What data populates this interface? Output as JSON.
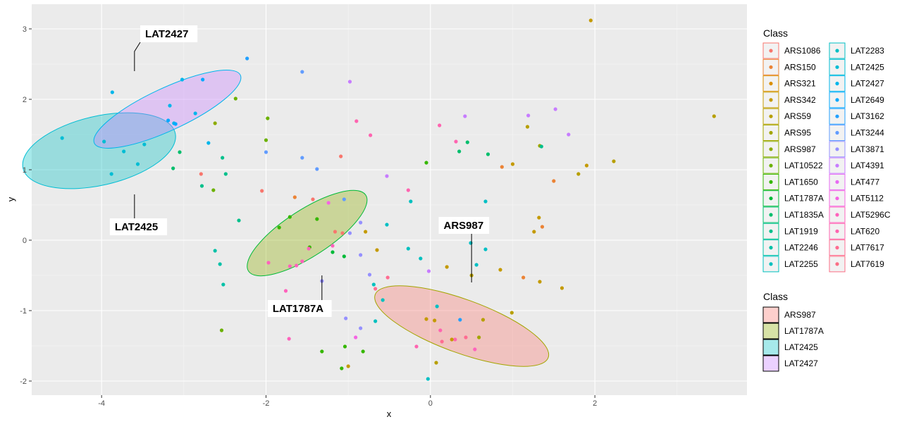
{
  "chart_data": {
    "type": "scatter",
    "xlabel": "x",
    "ylabel": "y",
    "xlim": [
      -4.85,
      3.85
    ],
    "ylim": [
      -2.2,
      3.35
    ],
    "xticks": [
      -4,
      -2,
      0,
      2
    ],
    "yticks": [
      -2,
      -1,
      0,
      1,
      2,
      3
    ],
    "grid": true,
    "legend_title": "Class",
    "classes": [
      {
        "name": "ARS1086",
        "color": "#F8766D"
      },
      {
        "name": "ARS150",
        "color": "#EB8335"
      },
      {
        "name": "ARS321",
        "color": "#DA8F00"
      },
      {
        "name": "ARS342",
        "color": "#C49A00"
      },
      {
        "name": "ARS59",
        "color": "#B79F00"
      },
      {
        "name": "ARS95",
        "color": "#A3A500"
      },
      {
        "name": "ARS987",
        "color": "#8CAB00"
      },
      {
        "name": "LAT10522",
        "color": "#6BB100"
      },
      {
        "name": "LAT1650",
        "color": "#35B700"
      },
      {
        "name": "LAT1787A",
        "color": "#00BA38"
      },
      {
        "name": "LAT1835A",
        "color": "#00BE6C"
      },
      {
        "name": "LAT1919",
        "color": "#00C08B"
      },
      {
        "name": "LAT2246",
        "color": "#00C1A7"
      },
      {
        "name": "LAT2255",
        "color": "#00C0BF"
      },
      {
        "name": "LAT2283",
        "color": "#00BFC4"
      },
      {
        "name": "LAT2425",
        "color": "#00BDD4"
      },
      {
        "name": "LAT2427",
        "color": "#00B6EB"
      },
      {
        "name": "LAT2649",
        "color": "#00A9FF"
      },
      {
        "name": "LAT3162",
        "color": "#21A0FF"
      },
      {
        "name": "LAT3244",
        "color": "#619CFF"
      },
      {
        "name": "LAT3871",
        "color": "#9590FF"
      },
      {
        "name": "LAT4391",
        "color": "#C77CFF"
      },
      {
        "name": "LAT477",
        "color": "#E76BF3"
      },
      {
        "name": "LAT5112",
        "color": "#F564E3"
      },
      {
        "name": "LAT5296C",
        "color": "#FF62BC"
      },
      {
        "name": "LAT620",
        "color": "#FF64B0"
      },
      {
        "name": "LAT7617",
        "color": "#FF6C91"
      },
      {
        "name": "LAT7619",
        "color": "#FB6F85"
      }
    ],
    "ellipse_legend_title": "Class",
    "ellipses": [
      {
        "name": "ARS987",
        "cx": 0.38,
        "cy": -1.22,
        "rx": 1.12,
        "ry": 0.38,
        "angle": 20,
        "fill": "#F8766D",
        "stroke": "#A3A500"
      },
      {
        "name": "LAT1787A",
        "cx": -1.5,
        "cy": 0.1,
        "rx": 0.85,
        "ry": 0.33,
        "angle": -33,
        "fill": "#8CAB00",
        "stroke": "#00BA38"
      },
      {
        "name": "LAT2425",
        "cx": -4.03,
        "cy": 1.27,
        "rx": 0.95,
        "ry": 0.49,
        "angle": -13,
        "fill": "#00BFC4",
        "stroke": "#00BDD4"
      },
      {
        "name": "LAT2427",
        "cx": -3.2,
        "cy": 1.86,
        "rx": 0.98,
        "ry": 0.3,
        "angle": -25,
        "fill": "#C77CFF",
        "stroke": "#00B6EB"
      }
    ],
    "callouts": [
      {
        "label": "LAT2427",
        "ax": -3.6,
        "ay": 2.4,
        "bx": -3.6,
        "by": 2.68,
        "tx": -3.53,
        "ty": 2.88
      },
      {
        "label": "LAT2425",
        "ax": -3.6,
        "ay": 0.65,
        "bx": -3.6,
        "by": 0.3,
        "tx": -3.9,
        "ty": 0.14
      },
      {
        "label": "LAT1787A",
        "ax": -1.32,
        "ay": -0.5,
        "bx": -1.32,
        "by": -0.85,
        "tx": -1.98,
        "ty": -1.02
      },
      {
        "label": "ARS987",
        "ax": 0.5,
        "ay": -0.6,
        "bx": 0.5,
        "by": -0.14,
        "tx": 0.1,
        "ty": 0.16
      }
    ],
    "points": [
      {
        "x": -4.48,
        "y": 1.45,
        "c": "LAT2425"
      },
      {
        "x": -3.97,
        "y": 1.4,
        "c": "LAT2425"
      },
      {
        "x": -3.88,
        "y": 0.94,
        "c": "LAT2425"
      },
      {
        "x": -3.73,
        "y": 1.26,
        "c": "LAT2425"
      },
      {
        "x": -3.56,
        "y": 1.08,
        "c": "LAT2425"
      },
      {
        "x": -3.48,
        "y": 1.36,
        "c": "LAT2425"
      },
      {
        "x": -3.87,
        "y": 2.1,
        "c": "LAT2427"
      },
      {
        "x": -3.17,
        "y": 1.91,
        "c": "LAT2427"
      },
      {
        "x": -3.12,
        "y": 1.66,
        "c": "LAT2427"
      },
      {
        "x": -3.02,
        "y": 2.28,
        "c": "LAT2427"
      },
      {
        "x": -2.86,
        "y": 1.8,
        "c": "LAT2427"
      },
      {
        "x": -2.7,
        "y": 1.38,
        "c": "LAT2427"
      },
      {
        "x": -3.19,
        "y": 1.7,
        "c": "LAT2649"
      },
      {
        "x": -3.1,
        "y": 1.65,
        "c": "LAT2649"
      },
      {
        "x": -2.77,
        "y": 2.28,
        "c": "LAT2649"
      },
      {
        "x": -2.23,
        "y": 2.58,
        "c": "LAT3162"
      },
      {
        "x": -2.0,
        "y": 1.25,
        "c": "LAT3244"
      },
      {
        "x": -1.56,
        "y": 2.39,
        "c": "LAT3244"
      },
      {
        "x": -1.56,
        "y": 1.17,
        "c": "LAT3244"
      },
      {
        "x": -1.38,
        "y": 1.01,
        "c": "LAT3244"
      },
      {
        "x": -2.62,
        "y": 1.66,
        "c": "ARS987"
      },
      {
        "x": -2.37,
        "y": 2.01,
        "c": "LAT10522"
      },
      {
        "x": -2.0,
        "y": 1.42,
        "c": "LAT10522"
      },
      {
        "x": -1.98,
        "y": 1.73,
        "c": "LAT10522"
      },
      {
        "x": -3.05,
        "y": 1.25,
        "c": "LAT1835A"
      },
      {
        "x": -3.13,
        "y": 1.02,
        "c": "LAT1835A"
      },
      {
        "x": -2.78,
        "y": 0.77,
        "c": "LAT1919"
      },
      {
        "x": -2.53,
        "y": 1.17,
        "c": "LAT1919"
      },
      {
        "x": -2.49,
        "y": 0.94,
        "c": "LAT1919"
      },
      {
        "x": -2.33,
        "y": 0.28,
        "c": "LAT1919"
      },
      {
        "x": -2.64,
        "y": 0.71,
        "c": "LAT10522"
      },
      {
        "x": -2.79,
        "y": 0.94,
        "c": "ARS1086"
      },
      {
        "x": -2.62,
        "y": -0.15,
        "c": "LAT2246"
      },
      {
        "x": -2.56,
        "y": -0.34,
        "c": "LAT2246"
      },
      {
        "x": -2.52,
        "y": -0.63,
        "c": "LAT2246"
      },
      {
        "x": -2.54,
        "y": -1.28,
        "c": "LAT10522"
      },
      {
        "x": -2.05,
        "y": 0.7,
        "c": "ARS1086"
      },
      {
        "x": -1.97,
        "y": -0.32,
        "c": "LAT5296C"
      },
      {
        "x": -1.76,
        "y": -0.72,
        "c": "LAT5296C"
      },
      {
        "x": -1.71,
        "y": -0.37,
        "c": "LAT5296C"
      },
      {
        "x": -1.72,
        "y": -1.4,
        "c": "LAT5296C"
      },
      {
        "x": -1.63,
        "y": -0.36,
        "c": "LAT5296C"
      },
      {
        "x": -1.84,
        "y": 0.18,
        "c": "LAT1650"
      },
      {
        "x": -1.71,
        "y": 0.33,
        "c": "LAT1650"
      },
      {
        "x": -1.38,
        "y": 0.3,
        "c": "LAT1650"
      },
      {
        "x": -1.47,
        "y": -0.1,
        "c": "LAT1650"
      },
      {
        "x": -1.19,
        "y": -0.17,
        "c": "LAT1787A"
      },
      {
        "x": -1.05,
        "y": -0.23,
        "c": "LAT1787A"
      },
      {
        "x": -1.65,
        "y": 0.61,
        "c": "ARS150"
      },
      {
        "x": -1.43,
        "y": 0.58,
        "c": "ARS1086"
      },
      {
        "x": -1.16,
        "y": 0.12,
        "c": "ARS1086"
      },
      {
        "x": -1.07,
        "y": 0.1,
        "c": "ARS1086"
      },
      {
        "x": -1.09,
        "y": 1.19,
        "c": "ARS1086"
      },
      {
        "x": -1.48,
        "y": -0.12,
        "c": "LAT5296C"
      },
      {
        "x": -1.19,
        "y": -0.08,
        "c": "LAT5296C"
      },
      {
        "x": -1.56,
        "y": -0.3,
        "c": "LAT5296C"
      },
      {
        "x": -1.24,
        "y": 0.53,
        "c": "LAT5112"
      },
      {
        "x": -1.24,
        "y": -0.96,
        "c": "LAT5112"
      },
      {
        "x": -1.05,
        "y": 0.58,
        "c": "LAT3244"
      },
      {
        "x": -1.32,
        "y": -0.58,
        "c": "LAT3871"
      },
      {
        "x": -0.98,
        "y": 0.1,
        "c": "LAT3871"
      },
      {
        "x": -0.85,
        "y": 0.25,
        "c": "LAT3871"
      },
      {
        "x": -0.85,
        "y": -0.21,
        "c": "LAT3871"
      },
      {
        "x": -0.98,
        "y": 2.25,
        "c": "LAT4391"
      },
      {
        "x": -0.9,
        "y": 1.69,
        "c": "LAT620"
      },
      {
        "x": -0.73,
        "y": 1.49,
        "c": "LAT620"
      },
      {
        "x": -0.79,
        "y": 0.12,
        "c": "ARS342"
      },
      {
        "x": -0.65,
        "y": -0.14,
        "c": "ARS342"
      },
      {
        "x": -0.74,
        "y": -0.49,
        "c": "LAT3871"
      },
      {
        "x": -0.69,
        "y": -0.63,
        "c": "LAT2255"
      },
      {
        "x": -0.67,
        "y": -0.69,
        "c": "LAT7617"
      },
      {
        "x": -0.58,
        "y": -0.85,
        "c": "LAT2255"
      },
      {
        "x": -0.53,
        "y": 0.22,
        "c": "LAT2283"
      },
      {
        "x": -0.52,
        "y": -0.53,
        "c": "LAT7617"
      },
      {
        "x": -0.53,
        "y": 0.91,
        "c": "LAT4391"
      },
      {
        "x": -0.85,
        "y": -1.25,
        "c": "LAT3871"
      },
      {
        "x": -0.91,
        "y": -1.38,
        "c": "LAT5112"
      },
      {
        "x": -0.67,
        "y": -1.15,
        "c": "LAT2255"
      },
      {
        "x": -0.82,
        "y": -1.58,
        "c": "LAT1650"
      },
      {
        "x": -1.03,
        "y": -1.11,
        "c": "LAT3871"
      },
      {
        "x": -1.04,
        "y": -1.51,
        "c": "LAT1650"
      },
      {
        "x": -1.0,
        "y": -1.79,
        "c": "ARS342"
      },
      {
        "x": -1.08,
        "y": -1.82,
        "c": "LAT1650"
      },
      {
        "x": -1.32,
        "y": -1.58,
        "c": "LAT1650"
      },
      {
        "x": -0.27,
        "y": 0.71,
        "c": "LAT620"
      },
      {
        "x": -0.24,
        "y": 0.55,
        "c": "LAT2255"
      },
      {
        "x": -0.27,
        "y": -0.12,
        "c": "LAT2255"
      },
      {
        "x": -0.12,
        "y": -0.26,
        "c": "LAT2255"
      },
      {
        "x": -0.05,
        "y": 1.1,
        "c": "LAT1650"
      },
      {
        "x": -0.02,
        "y": -0.44,
        "c": "LAT4391"
      },
      {
        "x": -0.03,
        "y": -1.97,
        "c": "LAT2283"
      },
      {
        "x": 0.11,
        "y": 1.63,
        "c": "LAT620"
      },
      {
        "x": 0.2,
        "y": -0.38,
        "c": "ARS342"
      },
      {
        "x": 0.31,
        "y": 1.4,
        "c": "LAT620"
      },
      {
        "x": 0.35,
        "y": 1.26,
        "c": "LAT1835A"
      },
      {
        "x": 0.45,
        "y": 1.39,
        "c": "LAT1835A"
      },
      {
        "x": 0.42,
        "y": 1.76,
        "c": "LAT4391"
      },
      {
        "x": 0.7,
        "y": 1.22,
        "c": "LAT1835A"
      },
      {
        "x": 0.49,
        "y": -0.04,
        "c": "LAT2283"
      },
      {
        "x": 0.56,
        "y": -0.35,
        "c": "LAT2283"
      },
      {
        "x": 0.5,
        "y": -0.5,
        "c": "ARS59"
      },
      {
        "x": 0.67,
        "y": -0.13,
        "c": "LAT2283"
      },
      {
        "x": 0.67,
        "y": 0.55,
        "c": "LAT2283"
      },
      {
        "x": 0.6,
        "y": 0.29,
        "c": "ARS150"
      },
      {
        "x": 0.63,
        "y": 0.3,
        "c": "ARS150"
      },
      {
        "x": 0.87,
        "y": 1.04,
        "c": "ARS150"
      },
      {
        "x": 0.85,
        "y": -0.42,
        "c": "ARS342"
      },
      {
        "x": 1.0,
        "y": 1.08,
        "c": "ARS342"
      },
      {
        "x": 1.13,
        "y": -0.53,
        "c": "ARS150"
      },
      {
        "x": 1.18,
        "y": 1.61,
        "c": "ARS59"
      },
      {
        "x": 1.19,
        "y": 1.77,
        "c": "LAT4391"
      },
      {
        "x": 1.26,
        "y": 0.12,
        "c": "ARS342"
      },
      {
        "x": 1.32,
        "y": 0.32,
        "c": "ARS342"
      },
      {
        "x": 1.36,
        "y": 0.19,
        "c": "ARS150"
      },
      {
        "x": 1.33,
        "y": 1.34,
        "c": "ARS95"
      },
      {
        "x": 1.35,
        "y": 1.33,
        "c": "LAT1919"
      },
      {
        "x": 1.33,
        "y": -0.59,
        "c": "ARS342"
      },
      {
        "x": 1.5,
        "y": 0.84,
        "c": "ARS150"
      },
      {
        "x": 1.52,
        "y": 1.86,
        "c": "LAT4391"
      },
      {
        "x": 1.6,
        "y": -0.68,
        "c": "ARS342"
      },
      {
        "x": 1.68,
        "y": 1.5,
        "c": "LAT4391"
      },
      {
        "x": 1.8,
        "y": 0.94,
        "c": "ARS59"
      },
      {
        "x": 1.9,
        "y": 1.06,
        "c": "ARS342"
      },
      {
        "x": 1.95,
        "y": 3.12,
        "c": "ARS342"
      },
      {
        "x": 2.23,
        "y": 1.12,
        "c": "ARS59"
      },
      {
        "x": 3.45,
        "y": 1.76,
        "c": "ARS59"
      },
      {
        "x": -0.05,
        "y": -1.12,
        "c": "ARS342"
      },
      {
        "x": 0.05,
        "y": -1.14,
        "c": "ARS342"
      },
      {
        "x": 0.08,
        "y": -0.94,
        "c": "LAT2283"
      },
      {
        "x": 0.14,
        "y": -1.44,
        "c": "LAT7617"
      },
      {
        "x": 0.12,
        "y": -1.28,
        "c": "LAT620"
      },
      {
        "x": 0.3,
        "y": -1.41,
        "c": "LAT620"
      },
      {
        "x": 0.26,
        "y": -1.41,
        "c": "ARS342"
      },
      {
        "x": 0.43,
        "y": -1.38,
        "c": "LAT7617"
      },
      {
        "x": 0.36,
        "y": -1.13,
        "c": "LAT3162"
      },
      {
        "x": 0.54,
        "y": -1.55,
        "c": "LAT5296C"
      },
      {
        "x": 0.59,
        "y": -1.38,
        "c": "ARS95"
      },
      {
        "x": 0.64,
        "y": -1.13,
        "c": "ARS59"
      },
      {
        "x": 0.99,
        "y": -1.03,
        "c": "ARS59"
      },
      {
        "x": -0.17,
        "y": -1.51,
        "c": "LAT620"
      },
      {
        "x": 0.07,
        "y": -1.74,
        "c": "ARS59"
      }
    ]
  }
}
